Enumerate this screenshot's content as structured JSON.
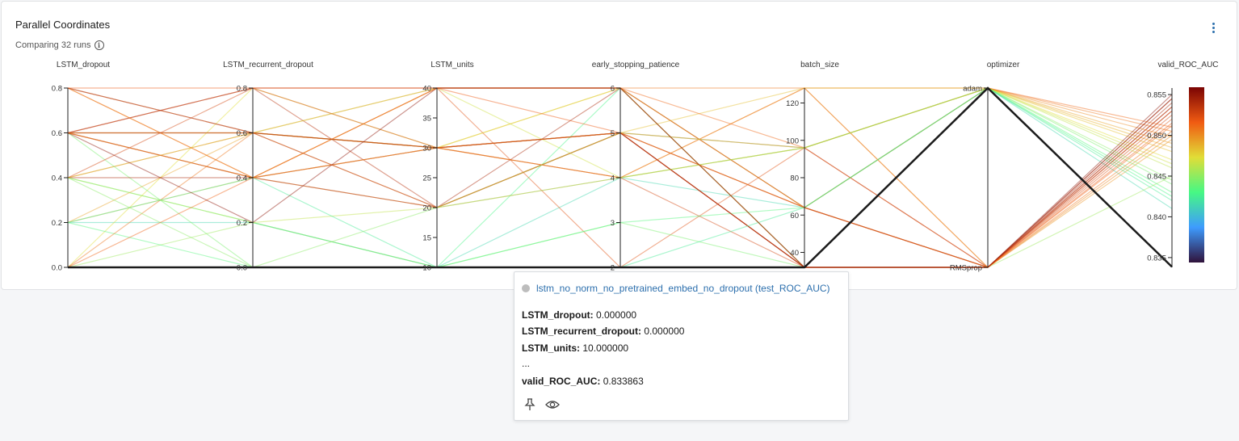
{
  "panel": {
    "title": "Parallel Coordinates",
    "subtitle": "Comparing 32 runs",
    "info_icon": "info-icon",
    "menu_icon": "kebab-menu-icon"
  },
  "chart_data": {
    "type": "parallel-coordinates",
    "axes": [
      {
        "name": "LSTM_dropout",
        "range": [
          0,
          0.8
        ],
        "ticks": [
          "0.0",
          "0.2",
          "0.4",
          "0.6",
          "0.8"
        ]
      },
      {
        "name": "LSTM_recurrent_dropout",
        "range": [
          0,
          0.8
        ],
        "ticks": [
          "0.0",
          "0.2",
          "0.4",
          "0.6",
          "0.8"
        ]
      },
      {
        "name": "LSTM_units",
        "range": [
          10,
          40
        ],
        "ticks": [
          "10",
          "15",
          "20",
          "25",
          "30",
          "35",
          "40"
        ]
      },
      {
        "name": "early_stopping_patience",
        "range": [
          2,
          6
        ],
        "ticks": [
          "2",
          "3",
          "4",
          "5",
          "6"
        ]
      },
      {
        "name": "batch_size",
        "range": [
          32,
          128
        ],
        "ticks": [
          "40",
          "60",
          "80",
          "100",
          "120"
        ]
      },
      {
        "name": "optimizer",
        "categories": [
          "RMSprop",
          "adam"
        ],
        "ticks": [
          "RMSprop",
          "adam"
        ]
      },
      {
        "name": "valid_ROC_AUC",
        "range": [
          0.8338,
          0.8558
        ],
        "ticks": [
          "0.835",
          "0.840",
          "0.845",
          "0.850",
          "0.855"
        ]
      }
    ],
    "colorbar": {
      "metric": "valid_ROC_AUC",
      "range": [
        0.8338,
        0.8558
      ],
      "colors": [
        "#30123b",
        "#3e9bfe",
        "#46f884",
        "#e1dd37",
        "#f05b12",
        "#7a0403"
      ]
    },
    "runs": [
      {
        "v": [
          0.0,
          0.0,
          10,
          2,
          32,
          "adam",
          0.833863
        ],
        "highlight": true
      },
      {
        "v": [
          0.8,
          0.6,
          40,
          6,
          128,
          "adam",
          0.8505
        ]
      },
      {
        "v": [
          0.6,
          0.4,
          30,
          5,
          64,
          "RMSprop",
          0.8545
        ]
      },
      {
        "v": [
          0.6,
          0.8,
          20,
          5,
          96,
          "RMSprop",
          0.8535
        ]
      },
      {
        "v": [
          0.4,
          0.6,
          40,
          4,
          96,
          "adam",
          0.8465
        ]
      },
      {
        "v": [
          0.2,
          0.4,
          30,
          6,
          64,
          "adam",
          0.8485
        ]
      },
      {
        "v": [
          0.4,
          0.2,
          10,
          6,
          32,
          "adam",
          0.8425
        ]
      },
      {
        "v": [
          0.6,
          0.6,
          30,
          5,
          32,
          "RMSprop",
          0.853
        ]
      },
      {
        "v": [
          0.8,
          0.4,
          20,
          4,
          128,
          "RMSprop",
          0.8495
        ]
      },
      {
        "v": [
          0.2,
          0.2,
          10,
          4,
          64,
          "adam",
          0.841
        ]
      },
      {
        "v": [
          0.6,
          0.4,
          40,
          2,
          96,
          "RMSprop",
          0.852
        ]
      },
      {
        "v": [
          0.0,
          0.8,
          30,
          6,
          32,
          "adam",
          0.847
        ]
      },
      {
        "v": [
          0.4,
          0.6,
          20,
          5,
          64,
          "RMSprop",
          0.85
        ]
      },
      {
        "v": [
          0.6,
          0.0,
          10,
          3,
          32,
          "adam",
          0.844
        ]
      },
      {
        "v": [
          0.8,
          0.8,
          40,
          5,
          32,
          "RMSprop",
          0.8515
        ]
      },
      {
        "v": [
          0.2,
          0.6,
          30,
          4,
          96,
          "adam",
          0.849
        ]
      },
      {
        "v": [
          0.4,
          0.4,
          20,
          6,
          64,
          "RMSprop",
          0.854
        ]
      },
      {
        "v": [
          0.6,
          0.6,
          30,
          5,
          128,
          "adam",
          0.848
        ]
      },
      {
        "v": [
          0.0,
          0.2,
          10,
          2,
          32,
          "RMSprop",
          0.845
        ]
      },
      {
        "v": [
          0.8,
          0.4,
          40,
          6,
          96,
          "adam",
          0.851
        ]
      },
      {
        "v": [
          0.4,
          0.8,
          30,
          4,
          32,
          "RMSprop",
          0.8525
        ]
      },
      {
        "v": [
          0.2,
          0.0,
          10,
          3,
          64,
          "adam",
          0.843
        ]
      },
      {
        "v": [
          0.6,
          0.6,
          20,
          5,
          32,
          "RMSprop",
          0.8535
        ]
      },
      {
        "v": [
          0.6,
          0.4,
          40,
          6,
          64,
          "adam",
          0.8498
        ]
      },
      {
        "v": [
          0.0,
          0.6,
          30,
          4,
          128,
          "RMSprop",
          0.8505
        ]
      },
      {
        "v": [
          0.4,
          0.2,
          20,
          5,
          96,
          "adam",
          0.846
        ]
      },
      {
        "v": [
          0.8,
          0.6,
          30,
          5,
          32,
          "RMSprop",
          0.8545
        ]
      },
      {
        "v": [
          0.2,
          0.4,
          10,
          2,
          64,
          "adam",
          0.842
        ]
      },
      {
        "v": [
          0.6,
          0.8,
          40,
          6,
          32,
          "RMSprop",
          0.853
        ]
      },
      {
        "v": [
          0.4,
          0.0,
          20,
          4,
          96,
          "adam",
          0.8445
        ]
      },
      {
        "v": [
          0.0,
          0.4,
          30,
          5,
          64,
          "RMSprop",
          0.8512
        ]
      },
      {
        "v": [
          0.6,
          0.2,
          40,
          6,
          32,
          "RMSprop",
          0.855
        ]
      }
    ]
  },
  "tooltip": {
    "run_name": "lstm_no_norm_no_pretrained_embed_no_dropout (test_ROC_AUC)",
    "rows": [
      {
        "label": "LSTM_dropout:",
        "value": "0.000000"
      },
      {
        "label": "LSTM_recurrent_dropout:",
        "value": "0.000000"
      },
      {
        "label": "LSTM_units:",
        "value": "10.000000"
      },
      {
        "label": "...",
        "value": ""
      },
      {
        "label": "valid_ROC_AUC:",
        "value": "0.833863"
      }
    ],
    "pin_icon": "pin-icon",
    "eye_icon": "eye-icon"
  }
}
